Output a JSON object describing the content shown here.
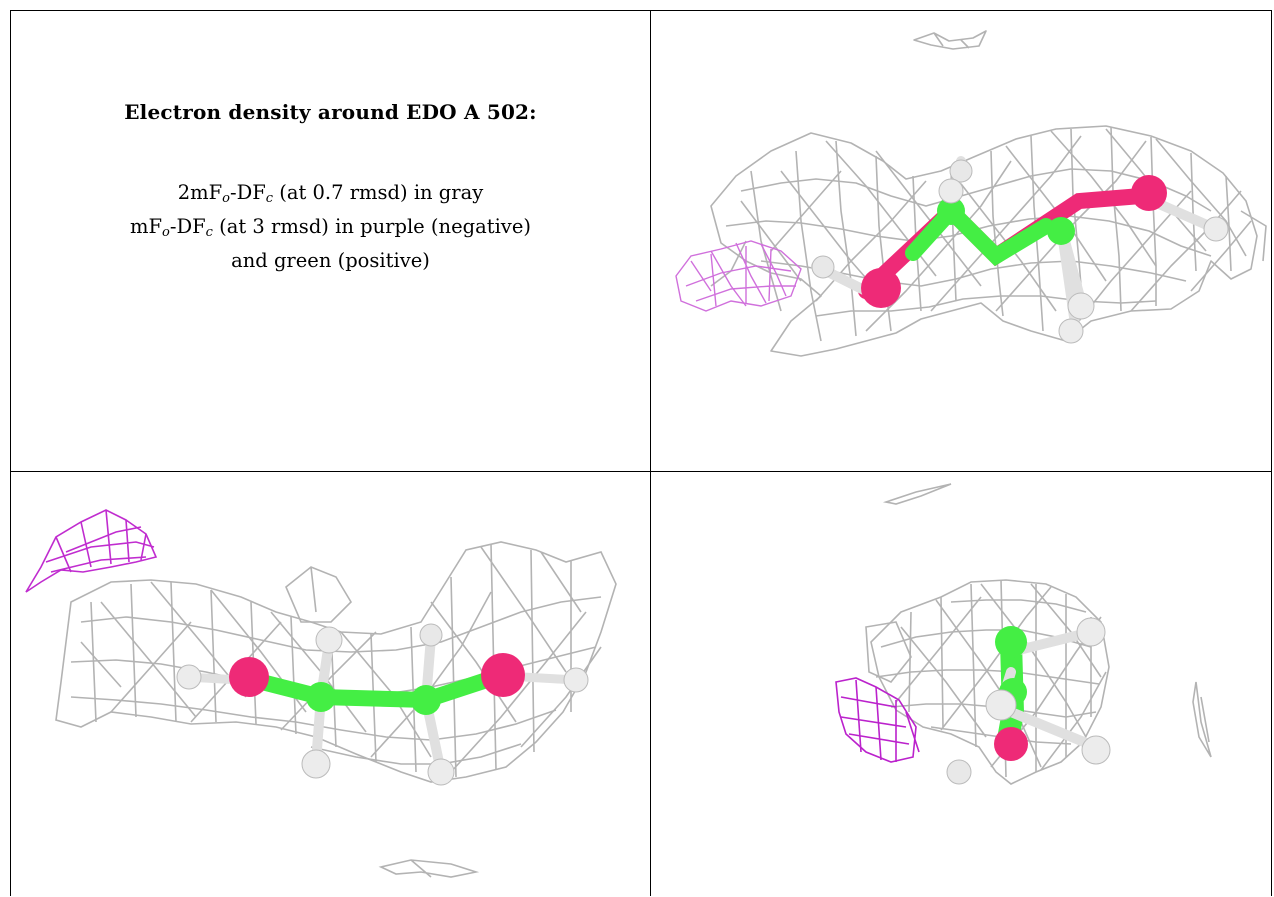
{
  "caption": {
    "title": "Electron density around EDO A 502:",
    "line1": {
      "pre": "2mF",
      "sub1": "o",
      "mid": "-DF",
      "sub2": "c",
      "post": " (at 0.7 rmsd) in gray"
    },
    "line2": {
      "pre": "mF",
      "sub1": "o",
      "mid": "-DF",
      "sub2": "c",
      "post": " (at 3 rmsd) in purple (negative)"
    },
    "line3": "and green (positive)"
  },
  "colors": {
    "mesh_2fofc": "#b3b3b3",
    "mesh_negative": "#cc33cc",
    "carbon": "#44ee44",
    "oxygen": "#ee2a77",
    "hydrogen": "#e6e6e6",
    "border": "#000000"
  },
  "panels": [
    {
      "view": "view-1",
      "icons": [
        "mesh-icon",
        "molecule-icon"
      ]
    },
    {
      "view": "view-2",
      "icons": [
        "mesh-icon",
        "molecule-icon"
      ]
    },
    {
      "view": "view-3",
      "icons": [
        "mesh-icon",
        "molecule-icon"
      ]
    }
  ]
}
